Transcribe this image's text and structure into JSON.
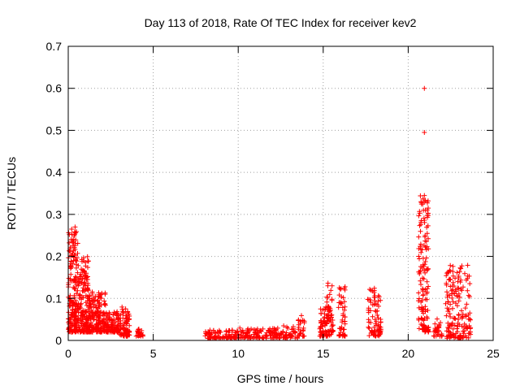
{
  "chart_data": {
    "type": "scatter",
    "title": "Day 113 of 2018, Rate Of TEC Index for receiver kev2",
    "xlabel": "GPS time / hours",
    "ylabel": "ROTI / TECUs",
    "xlim": [
      0,
      25
    ],
    "ylim": [
      0,
      0.7
    ],
    "grid": true,
    "marker": "+",
    "color": "#ff0000",
    "xticks": [
      "0",
      "5",
      "10",
      "15",
      "20",
      "25"
    ],
    "yticks": [
      "0",
      "0.1",
      "0.2",
      "0.3",
      "0.4",
      "0.5",
      "0.6",
      "0.7"
    ],
    "clusters": [
      {
        "x": [
          0.0,
          0.6
        ],
        "y": [
          0.02,
          0.26
        ],
        "n": 200
      },
      {
        "x": [
          0.6,
          1.2
        ],
        "y": [
          0.02,
          0.2
        ],
        "n": 160
      },
      {
        "x": [
          1.2,
          2.2
        ],
        "y": [
          0.02,
          0.12
        ],
        "n": 180
      },
      {
        "x": [
          2.2,
          3.0
        ],
        "y": [
          0.02,
          0.07
        ],
        "n": 110
      },
      {
        "x": [
          3.0,
          3.6
        ],
        "y": [
          0.01,
          0.08
        ],
        "n": 80
      },
      {
        "x": [
          4.0,
          4.4
        ],
        "y": [
          0.01,
          0.03
        ],
        "n": 25
      },
      {
        "x": [
          8.0,
          10.0
        ],
        "y": [
          0.005,
          0.025
        ],
        "n": 90
      },
      {
        "x": [
          10.0,
          12.0
        ],
        "y": [
          0.005,
          0.03
        ],
        "n": 90
      },
      {
        "x": [
          12.0,
          13.5
        ],
        "y": [
          0.005,
          0.035
        ],
        "n": 70
      },
      {
        "x": [
          13.5,
          13.9
        ],
        "y": [
          0.01,
          0.06
        ],
        "n": 25
      },
      {
        "x": [
          14.8,
          15.5
        ],
        "y": [
          0.01,
          0.08
        ],
        "n": 70
      },
      {
        "x": [
          15.2,
          15.6
        ],
        "y": [
          0.02,
          0.145
        ],
        "n": 35
      },
      {
        "x": [
          15.9,
          16.3
        ],
        "y": [
          0.01,
          0.13
        ],
        "n": 45
      },
      {
        "x": [
          17.6,
          18.4
        ],
        "y": [
          0.01,
          0.125
        ],
        "n": 80
      },
      {
        "x": [
          20.6,
          21.2
        ],
        "y": [
          0.02,
          0.35
        ],
        "n": 140
      },
      {
        "x": [
          21.5,
          22.0
        ],
        "y": [
          0.01,
          0.06
        ],
        "n": 30
      },
      {
        "x": [
          22.2,
          23.7
        ],
        "y": [
          0.005,
          0.18
        ],
        "n": 170
      }
    ],
    "points": [
      {
        "x": 20.95,
        "y": 0.6
      },
      {
        "x": 20.95,
        "y": 0.495
      },
      {
        "x": 20.95,
        "y": 0.345
      },
      {
        "x": 20.9,
        "y": 0.31
      },
      {
        "x": 0.2,
        "y": 0.265
      },
      {
        "x": 0.4,
        "y": 0.27
      },
      {
        "x": 21.0,
        "y": 0.25
      }
    ]
  }
}
